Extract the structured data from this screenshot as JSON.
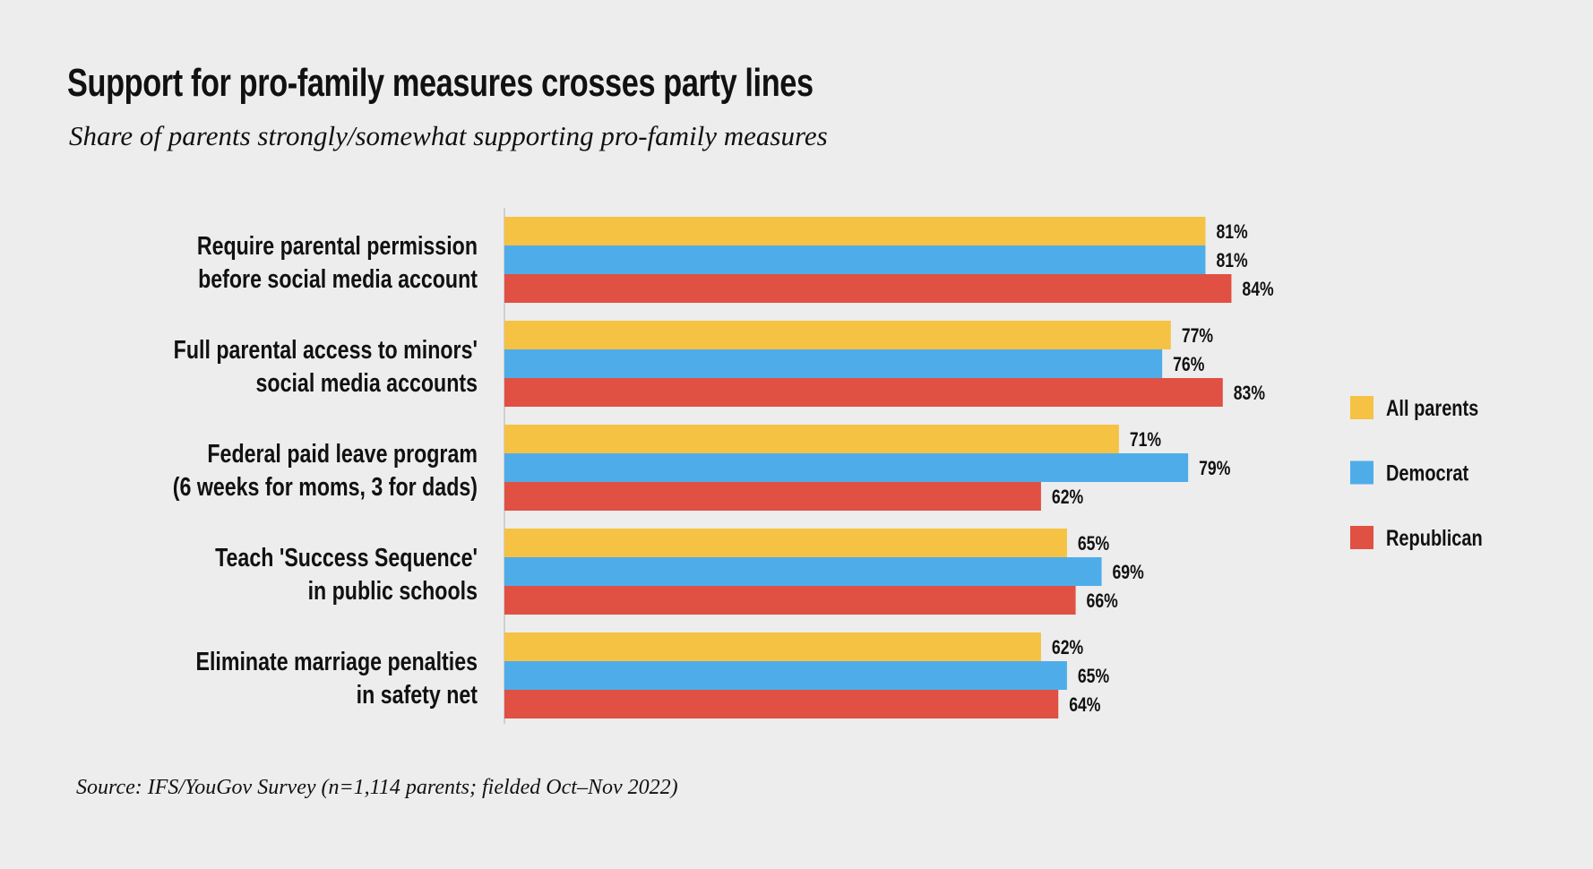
{
  "chart_data": {
    "type": "bar",
    "orientation": "horizontal",
    "title": "Support for pro-family measures crosses party lines",
    "subtitle": "Share of parents strongly/somewhat supporting pro-family measures",
    "source": "Source: IFS/YouGov Survey (n=1,114 parents; fielded Oct–Nov 2022)",
    "categories": [
      [
        "Require parental permission",
        "before social media account"
      ],
      [
        "Full parental access to minors'",
        "social media accounts"
      ],
      [
        "Federal paid leave program",
        "(6 weeks for moms, 3 for dads)"
      ],
      [
        "Teach 'Success Sequence'",
        "in public schools"
      ],
      [
        "Eliminate marriage penalties",
        "in safety net"
      ]
    ],
    "series": [
      {
        "name": "All parents",
        "color": "#f5c244",
        "values": [
          81,
          77,
          71,
          65,
          62
        ]
      },
      {
        "name": "Democrat",
        "color": "#4eade9",
        "values": [
          81,
          76,
          79,
          69,
          65
        ]
      },
      {
        "name": "Republican",
        "color": "#e05043",
        "values": [
          84,
          83,
          62,
          66,
          64
        ]
      }
    ],
    "value_format": "{v}%",
    "xlim": [
      0,
      100
    ],
    "grid": false,
    "legend_position": "right",
    "background": "#ededed"
  }
}
